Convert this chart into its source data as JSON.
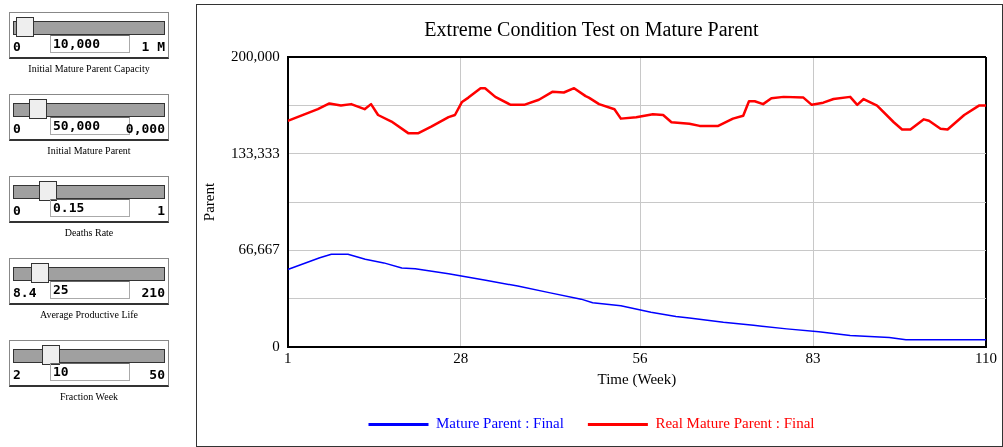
{
  "chart_data": [
    {
      "type": "other",
      "annotations": [
        "0",
        "10,000",
        "1 M",
        "Initial Mature Parent Capacity",
        "0",
        "50,000",
        "0,000",
        "Initial Mature Parent",
        "0",
        "0.15",
        "1",
        "Deaths Rate",
        "8.4",
        "25",
        "210",
        "Average Productive Life",
        "2",
        "10",
        "50",
        "Fraction Week"
      ]
    },
    {
      "type": "line",
      "title": "Extreme Condition Test on Mature Parent",
      "xlabel": "Time (Week)",
      "ylabel": "Parent",
      "xlim": [
        1,
        110
      ],
      "xticks": [
        1,
        28,
        56,
        83,
        110
      ],
      "ylim": [
        0,
        200000
      ],
      "yticks": [
        0,
        {
          "value": 33333,
          "label": null
        },
        {
          "value": 66667,
          "label": "66,667"
        },
        {
          "value": 100000,
          "label": null
        },
        {
          "value": 133333,
          "label": "133,333"
        },
        {
          "value": 166667,
          "label": null
        },
        {
          "value": 200000,
          "label": "200,000"
        }
      ],
      "grid": true,
      "legend": "bottom",
      "marker": "none",
      "line_style": "solid",
      "series": [
        {
          "name": "Mature Parent : Final",
          "color": "#0000ff",
          "x": [
            1,
            6,
            7.8,
            10.4,
            13.1,
            16,
            18.8,
            20.9,
            26.1,
            31.9,
            36.9,
            41.8,
            46.8,
            48.6,
            53,
            57.7,
            61.6,
            63.7,
            69,
            73.7,
            78.9,
            83.9,
            88.8,
            94.9,
            97.5,
            110
          ],
          "values": [
            53500,
            61500,
            64000,
            64000,
            60500,
            58000,
            54500,
            54000,
            50500,
            46000,
            42000,
            37500,
            33000,
            30500,
            28500,
            24000,
            21000,
            20000,
            17000,
            15000,
            12500,
            10500,
            8000,
            6500,
            5000,
            5000
          ]
        },
        {
          "name": "Real Mature Parent : Final",
          "color": "#ff0000",
          "x": [
            1,
            5.7,
            7.5,
            9.3,
            10.9,
            13,
            14,
            15.1,
            17.2,
            19.8,
            21.4,
            23.4,
            26.1,
            27.1,
            28.2,
            29.2,
            31.1,
            31.8,
            33.4,
            35.8,
            37.9,
            40.2,
            42.3,
            44.1,
            45.7,
            47.5,
            48,
            49.6,
            52,
            53,
            55.4,
            58,
            59.6,
            60.9,
            63.7,
            65.3,
            68.2,
            70.5,
            72.1,
            73,
            73.9,
            75.2,
            76.5,
            78.4,
            81.5,
            82.8,
            84.6,
            86.2,
            88.8,
            89.9,
            90.9,
            93,
            95.6,
            96.9,
            98.2,
            100.3,
            101.1,
            102.9,
            104,
            106.6,
            108.9,
            110
          ],
          "values": [
            156000,
            164000,
            168000,
            166500,
            167500,
            164000,
            167500,
            160000,
            155500,
            147500,
            147500,
            152000,
            158500,
            160000,
            169000,
            172000,
            178500,
            178500,
            172500,
            167000,
            167000,
            170500,
            176000,
            175500,
            178500,
            173000,
            172000,
            167500,
            164000,
            157500,
            158500,
            160500,
            160000,
            155000,
            154000,
            152500,
            152500,
            157500,
            159500,
            169500,
            169500,
            167500,
            171500,
            172500,
            172000,
            167000,
            168500,
            171000,
            172500,
            167000,
            171000,
            166500,
            155000,
            150000,
            150000,
            157000,
            156000,
            150500,
            150000,
            160000,
            166500,
            166500
          ]
        }
      ]
    }
  ]
}
